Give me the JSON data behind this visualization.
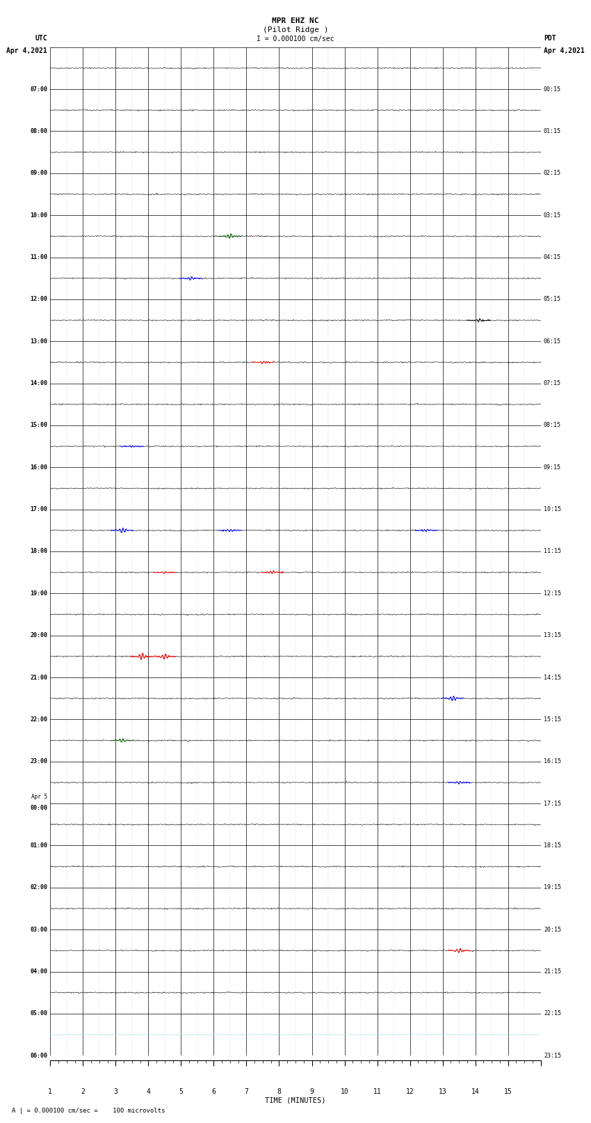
{
  "title_line1": "MPR EHZ NC",
  "title_line2": "(Pilot Ridge )",
  "title_line3": "I = 0.000100 cm/sec",
  "label_utc": "UTC",
  "label_pdt": "PDT",
  "date_left": "Apr 4,2021",
  "date_right": "Apr 4,2021",
  "footer": "A | = 0.000100 cm/sec =    100 microvolts",
  "xlabel": "TIME (MINUTES)",
  "rows": 24,
  "minutes_per_row": 15,
  "bg_color": "#ffffff",
  "utc_labels": [
    "07:00",
    "08:00",
    "09:00",
    "10:00",
    "11:00",
    "12:00",
    "13:00",
    "14:00",
    "15:00",
    "16:00",
    "17:00",
    "18:00",
    "19:00",
    "20:00",
    "21:00",
    "22:00",
    "23:00",
    "Apr 5\n00:00",
    "01:00",
    "02:00",
    "03:00",
    "04:00",
    "05:00",
    "06:00"
  ],
  "pdt_labels": [
    "00:15",
    "01:15",
    "02:15",
    "03:15",
    "04:15",
    "05:15",
    "06:15",
    "07:15",
    "08:15",
    "09:15",
    "10:15",
    "11:15",
    "12:15",
    "13:15",
    "14:15",
    "15:15",
    "16:15",
    "17:15",
    "18:15",
    "19:15",
    "20:15",
    "21:15",
    "22:15",
    "23:15"
  ],
  "events": [
    {
      "row": 4,
      "minute": 5.5,
      "color": "#006400",
      "amplitude": 0.6
    },
    {
      "row": 5,
      "minute": 4.3,
      "color": "#0000ff",
      "amplitude": 0.5
    },
    {
      "row": 6,
      "minute": 13.1,
      "color": "#000000",
      "amplitude": 0.4
    },
    {
      "row": 7,
      "minute": 6.5,
      "color": "#ff0000",
      "amplitude": 0.3
    },
    {
      "row": 9,
      "minute": 2.5,
      "color": "#0000ff",
      "amplitude": 0.35
    },
    {
      "row": 11,
      "minute": 2.2,
      "color": "#0000ff",
      "amplitude": 0.8
    },
    {
      "row": 11,
      "minute": 5.5,
      "color": "#0000ff",
      "amplitude": 0.3
    },
    {
      "row": 11,
      "minute": 11.5,
      "color": "#0000ff",
      "amplitude": 0.3
    },
    {
      "row": 12,
      "minute": 6.8,
      "color": "#ff0000",
      "amplitude": 0.35
    },
    {
      "row": 12,
      "minute": 3.5,
      "color": "#ff0000",
      "amplitude": 0.3
    },
    {
      "row": 14,
      "minute": 2.8,
      "color": "#ff0000",
      "amplitude": 1.0
    },
    {
      "row": 14,
      "minute": 3.5,
      "color": "#ff0000",
      "amplitude": 0.8
    },
    {
      "row": 15,
      "minute": 12.3,
      "color": "#0000ff",
      "amplitude": 0.7
    },
    {
      "row": 16,
      "minute": 2.2,
      "color": "#006400",
      "amplitude": 0.5
    },
    {
      "row": 17,
      "minute": 12.5,
      "color": "#0000ff",
      "amplitude": 0.35
    },
    {
      "row": 21,
      "minute": 12.5,
      "color": "#ff0000",
      "amplitude": 0.6
    }
  ],
  "noise_seed": 42,
  "trace_color": "#000000",
  "last_row_color": "#add8e6"
}
